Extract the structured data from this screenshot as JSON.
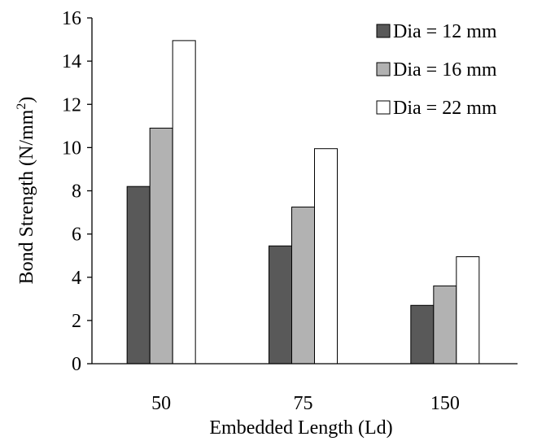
{
  "chart_data": {
    "type": "bar",
    "categories": [
      "50",
      "75",
      "150"
    ],
    "series": [
      {
        "name": "Dia = 12 mm",
        "values": [
          8.2,
          5.45,
          2.7
        ],
        "color": "#595959"
      },
      {
        "name": "Dia = 16 mm",
        "values": [
          10.9,
          7.25,
          3.6
        ],
        "color": "#b2b2b2"
      },
      {
        "name": "Dia = 22 mm",
        "values": [
          14.95,
          9.95,
          4.95
        ],
        "color": "#ffffff"
      }
    ],
    "yticks": [
      "0",
      "2",
      "4",
      "6",
      "8",
      "10",
      "12",
      "14",
      "16"
    ],
    "ylim": [
      0,
      16
    ],
    "xlabel": "Embedded Length (Ld)",
    "ylabel_main": "Bond Strength (N/mm",
    "ylabel_sup": "2",
    "ylabel_end": ")",
    "grid": false,
    "legend_position": "top-right",
    "bar_outline_color": "#000000"
  }
}
